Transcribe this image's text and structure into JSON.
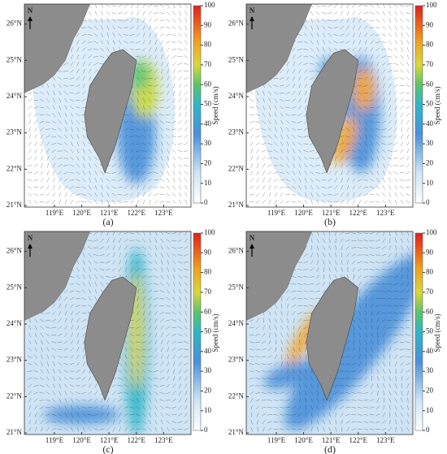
{
  "panels": [
    {
      "label": "(a)"
    },
    {
      "label": "(b)"
    },
    {
      "label": "(c)"
    },
    {
      "label": "(d)"
    }
  ],
  "north_label": "N",
  "lat_ticks": [
    {
      "value": 21,
      "label": "21°N"
    },
    {
      "value": 22,
      "label": "22°N"
    },
    {
      "value": 23,
      "label": "23°N"
    },
    {
      "value": 24,
      "label": "24°N"
    },
    {
      "value": 25,
      "label": "25°N"
    },
    {
      "value": 26,
      "label": "26°N"
    }
  ],
  "lon_ticks": [
    {
      "value": 119,
      "label": "119°E"
    },
    {
      "value": 120,
      "label": "120°E"
    },
    {
      "value": 121,
      "label": "121°E"
    },
    {
      "value": 122,
      "label": "122°E"
    },
    {
      "value": 123,
      "label": "123°E"
    }
  ],
  "colorbar": {
    "title": "Speed (cm/s)",
    "range": [
      0,
      100
    ],
    "ticks": [
      0,
      10,
      20,
      30,
      40,
      50,
      60,
      70,
      80,
      90,
      100
    ]
  }
}
